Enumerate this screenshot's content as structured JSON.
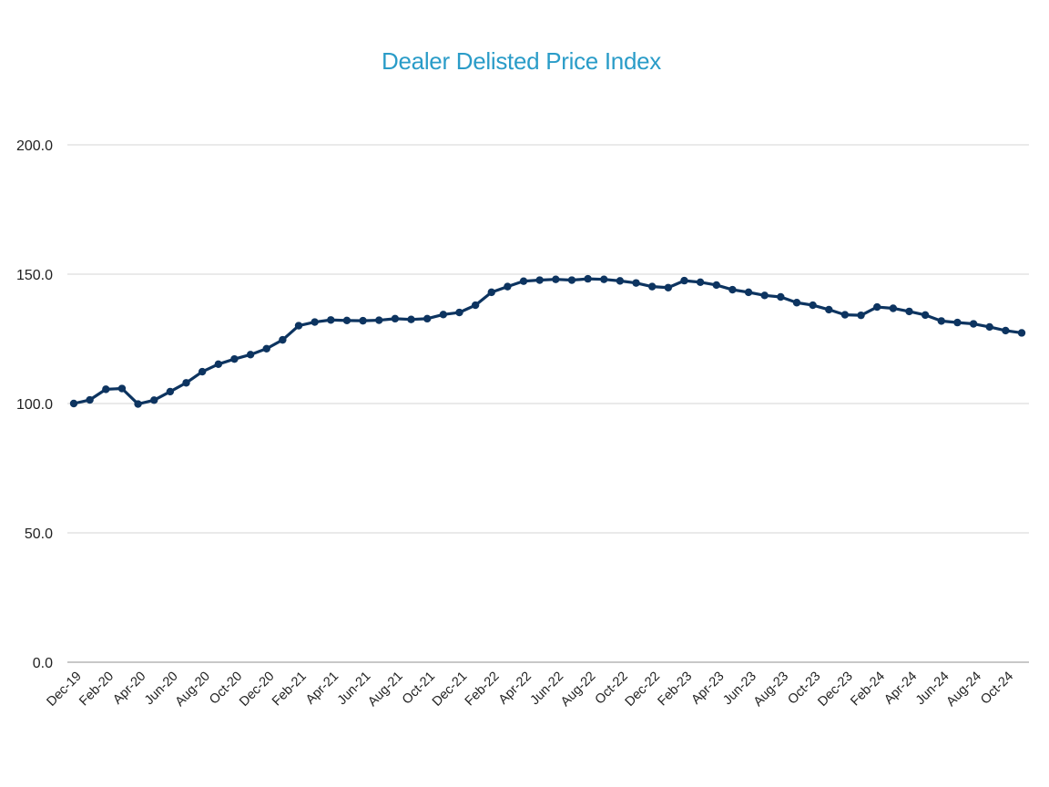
{
  "chart_data": {
    "type": "line",
    "title": "Dealer Delisted Price Index",
    "xlabel": "",
    "ylabel": "",
    "ylim": [
      0,
      200
    ],
    "yticks": [
      "0.0",
      "50.0",
      "100.0",
      "150.0",
      "200.0"
    ],
    "grid": true,
    "legend": "none",
    "line_color": "#0d3460",
    "title_color": "#2a9cc8",
    "x_tick_labels": [
      "Dec-19",
      "Feb-20",
      "Apr-20",
      "Jun-20",
      "Aug-20",
      "Oct-20",
      "Dec-20",
      "Feb-21",
      "Apr-21",
      "Jun-21",
      "Aug-21",
      "Oct-21",
      "Dec-21",
      "Feb-22",
      "Apr-22",
      "Jun-22",
      "Aug-22",
      "Oct-22",
      "Dec-22",
      "Feb-23",
      "Apr-23",
      "Jun-23",
      "Aug-23",
      "Oct-23",
      "Dec-23",
      "Feb-24",
      "Apr-24",
      "Jun-24",
      "Aug-24",
      "Oct-24"
    ],
    "categories": [
      "Dec-19",
      "Jan-20",
      "Feb-20",
      "Mar-20",
      "Apr-20",
      "May-20",
      "Jun-20",
      "Jul-20",
      "Aug-20",
      "Sep-20",
      "Oct-20",
      "Nov-20",
      "Dec-20",
      "Jan-21",
      "Feb-21",
      "Mar-21",
      "Apr-21",
      "May-21",
      "Jun-21",
      "Jul-21",
      "Aug-21",
      "Sep-21",
      "Oct-21",
      "Nov-21",
      "Dec-21",
      "Jan-22",
      "Feb-22",
      "Mar-22",
      "Apr-22",
      "May-22",
      "Jun-22",
      "Jul-22",
      "Aug-22",
      "Sep-22",
      "Oct-22",
      "Nov-22",
      "Dec-22",
      "Jan-23",
      "Feb-23",
      "Mar-23",
      "Apr-23",
      "May-23",
      "Jun-23",
      "Jul-23",
      "Aug-23",
      "Sep-23",
      "Oct-23",
      "Nov-23",
      "Dec-23",
      "Jan-24",
      "Feb-24",
      "Mar-24",
      "Apr-24",
      "May-24",
      "Jun-24",
      "Jul-24",
      "Aug-24",
      "Sep-24",
      "Oct-24",
      "Nov-24"
    ],
    "series": [
      {
        "values": [
          100.0,
          101.4,
          105.5,
          105.8,
          99.8,
          101.3,
          104.6,
          108.0,
          112.3,
          115.2,
          117.2,
          118.9,
          121.2,
          124.6,
          130.1,
          131.5,
          132.3,
          132.1,
          132.0,
          132.2,
          132.8,
          132.5,
          132.8,
          134.4,
          135.2,
          138.0,
          143.0,
          145.2,
          147.3,
          147.7,
          148.0,
          147.7,
          148.2,
          148.0,
          147.4,
          146.6,
          145.2,
          144.8,
          147.5,
          146.9,
          145.8,
          144.0,
          143.0,
          141.8,
          141.2,
          139.0,
          138.0,
          136.3,
          134.3,
          134.1,
          137.3,
          136.8,
          135.6,
          134.2,
          131.9,
          131.3,
          130.8,
          129.6,
          128.2,
          127.3
        ]
      }
    ]
  }
}
